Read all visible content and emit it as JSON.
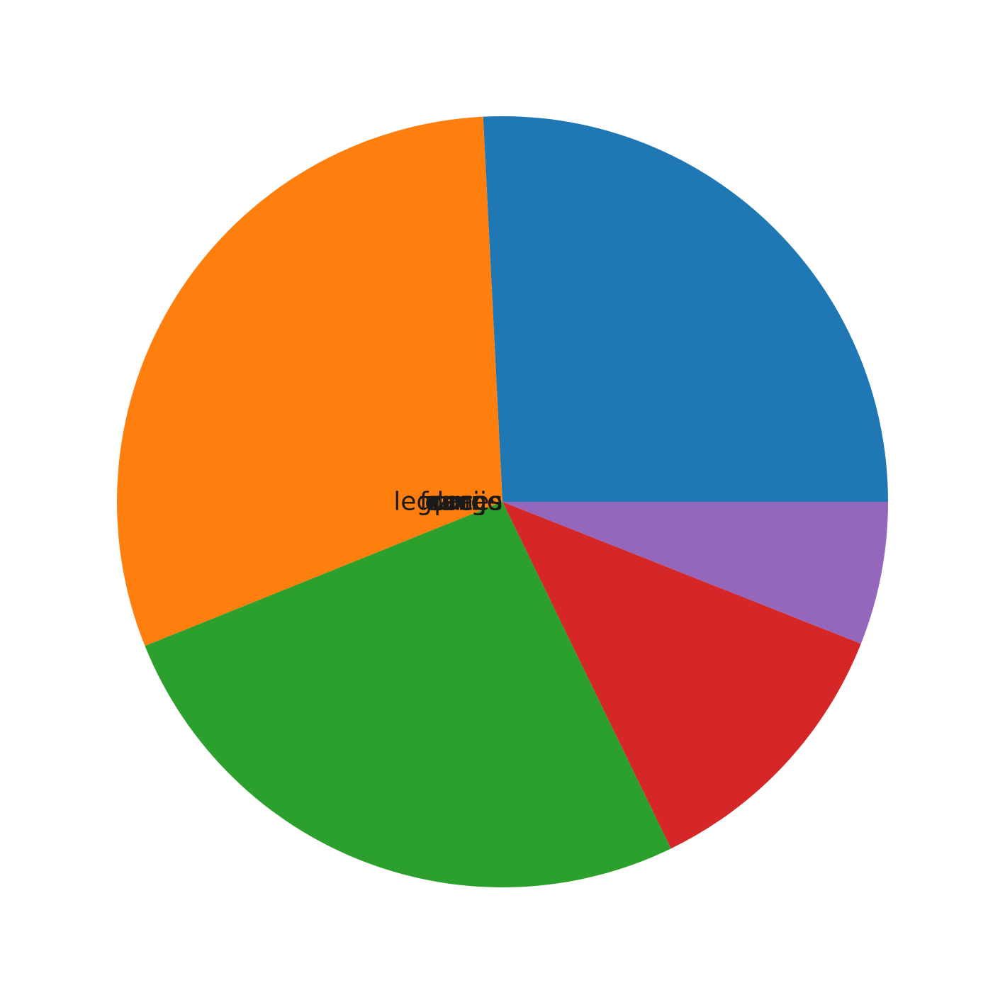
{
  "chart_data": {
    "type": "pie",
    "slices": [
      {
        "label": "frango",
        "value": 25.8,
        "color": "#1f77b4"
      },
      {
        "label": "queijo",
        "value": 30.3,
        "color": "#ff7f0e"
      },
      {
        "label": "carne",
        "value": 26.1,
        "color": "#2ca02c"
      },
      {
        "label": "legumes",
        "value": 11.8,
        "color": "#d62728"
      },
      {
        "label": "doces",
        "value": 6.0,
        "color": "#9467bd"
      }
    ],
    "start_angle_deg": 0,
    "direction": "counterclockwise",
    "labels_overlap_at_center": true
  }
}
